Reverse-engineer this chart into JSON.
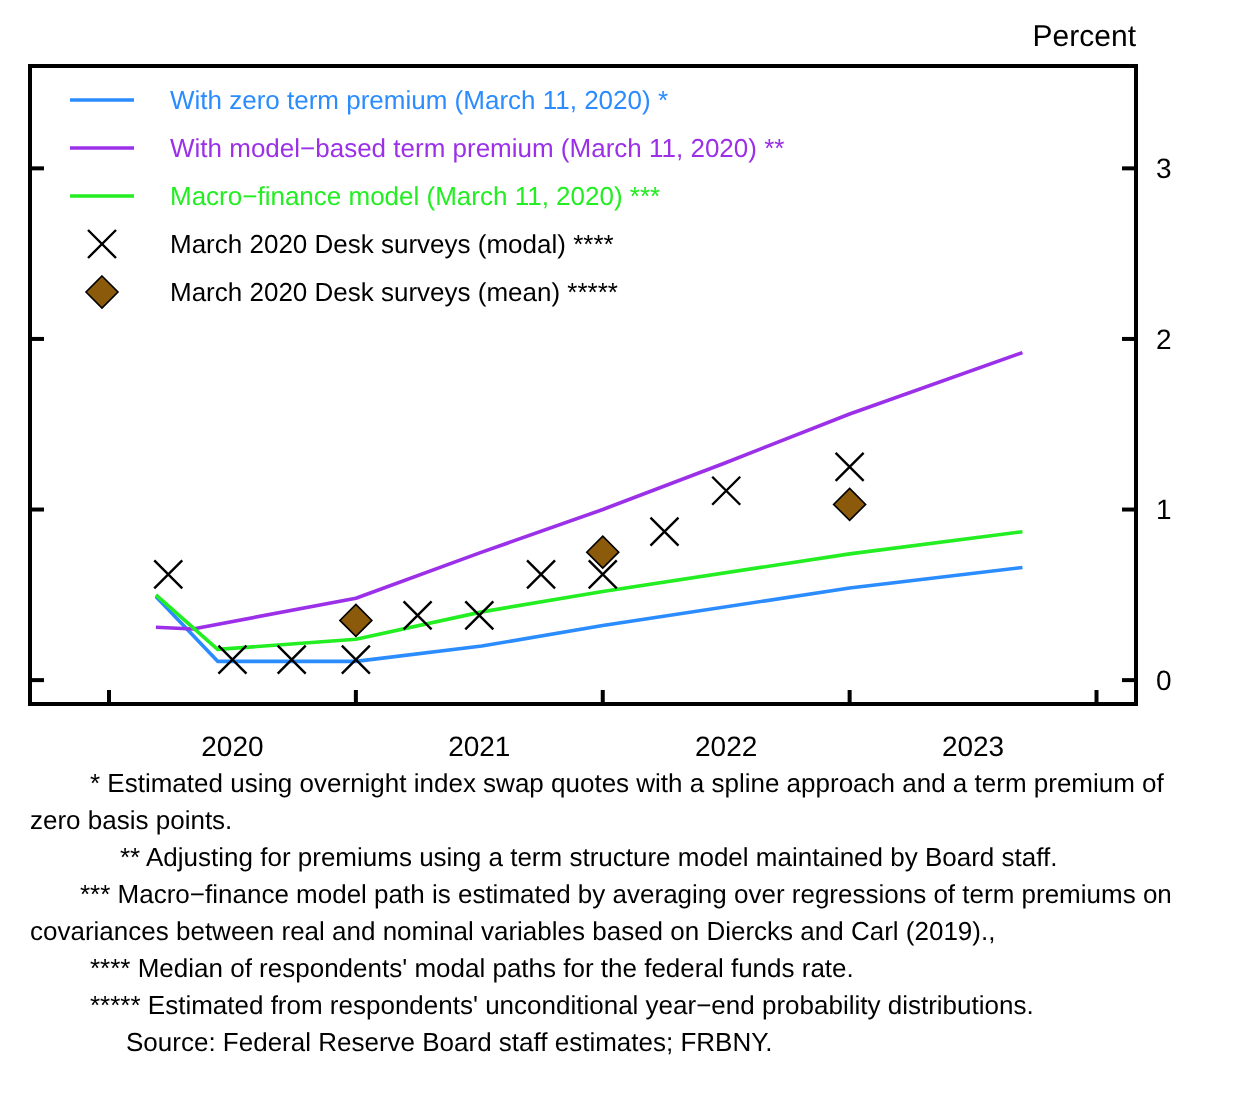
{
  "chart_data": {
    "type": "line",
    "ylabel": "Percent",
    "legend": "top left",
    "grid": false,
    "xlim": [
      2019.68,
      2024.16
    ],
    "xticks": [
      {
        "value": 2020,
        "label": null
      },
      {
        "value": 2020.5,
        "label": "2020"
      },
      {
        "value": 2021,
        "label": null
      },
      {
        "value": 2021.5,
        "label": "2021"
      },
      {
        "value": 2022,
        "label": null
      },
      {
        "value": 2022.5,
        "label": "2022"
      },
      {
        "value": 2023,
        "label": null
      },
      {
        "value": 2023.5,
        "label": "2023"
      },
      {
        "value": 2024,
        "label": null
      }
    ],
    "ylim": [
      -0.14,
      3.6
    ],
    "yticks": [
      0,
      1,
      2,
      3
    ],
    "series": [
      {
        "name": "With zero term premium (March 11, 2020) *",
        "color": "#2b8cff",
        "marker": "none",
        "x": [
          2020.19,
          2020.44,
          2021.0,
          2021.51,
          2022.0,
          2023.0,
          2023.7
        ],
        "values": [
          0.49,
          0.11,
          0.11,
          0.2,
          0.32,
          0.54,
          0.66
        ]
      },
      {
        "name": "With model−based term premium (March 11, 2020) **",
        "color": "#9b30e8",
        "marker": "none",
        "x": [
          2020.19,
          2020.34,
          2021.0,
          2021.51,
          2022.0,
          2022.49,
          2023.0,
          2023.7
        ],
        "values": [
          0.31,
          0.3,
          0.48,
          0.75,
          1.0,
          1.27,
          1.56,
          1.92
        ]
      },
      {
        "name": "Macro−finance model (March 11, 2020) ***",
        "color": "#22ee22",
        "marker": "none",
        "x": [
          2020.19,
          2020.44,
          2021.0,
          2021.51,
          2022.0,
          2023.0,
          2023.7
        ],
        "values": [
          0.5,
          0.18,
          0.24,
          0.4,
          0.52,
          0.74,
          0.87
        ]
      },
      {
        "name": "March 2020 Desk surveys (modal) ****",
        "type": "scatter",
        "color": "#000000",
        "marker": "cross",
        "x": [
          2020.24,
          2020.5,
          2020.74,
          2021.0,
          2021.25,
          2021.5,
          2021.75,
          2022.0,
          2022.25,
          2022.5,
          2023.0
        ],
        "values": [
          0.62,
          0.12,
          0.12,
          0.12,
          0.38,
          0.38,
          0.62,
          0.62,
          0.87,
          1.11,
          1.25
        ]
      },
      {
        "name": "March 2020 Desk surveys (mean) *****",
        "type": "scatter",
        "color": "#8b5a0a",
        "marker": "diamond",
        "x": [
          2021.0,
          2022.0,
          2023.0
        ],
        "values": [
          0.35,
          0.75,
          1.03
        ]
      }
    ],
    "annotations": [
      "* Estimated using overnight index swap quotes with a spline approach and a term premium of zero basis points.",
      "** Adjusting for premiums using a term structure model maintained by Board staff.",
      "*** Macro−finance model path is estimated by averaging over regressions of term premiums on covariances between real and nominal variables based on Diercks and Carl (2019).,",
      "**** Median of respondents' modal paths for the federal funds rate.",
      "***** Estimated from respondents' unconditional year−end probability distributions.",
      "Source: Federal Reserve Board staff estimates; FRBNY."
    ]
  }
}
